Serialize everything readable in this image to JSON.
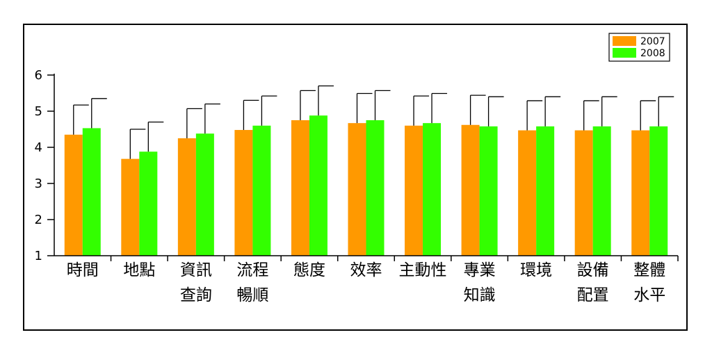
{
  "chart_data": {
    "type": "bar",
    "title": "",
    "xlabel": "",
    "ylabel": "",
    "ylim": [
      1,
      6
    ],
    "yticks": [
      "1",
      "2",
      "3",
      "4",
      "5",
      "6"
    ],
    "grid": false,
    "legend_position": "top-right",
    "categories": [
      [
        "時間"
      ],
      [
        "地點"
      ],
      [
        "資訊",
        "查詢"
      ],
      [
        "流程",
        "暢順"
      ],
      [
        "態度"
      ],
      [
        "效率"
      ],
      [
        "主動性"
      ],
      [
        "專業",
        "知識"
      ],
      [
        "環境"
      ],
      [
        "設備",
        "配置"
      ],
      [
        "整體",
        "水平"
      ]
    ],
    "series": [
      {
        "name": "2007",
        "color": "#ff9900",
        "values": [
          4.35,
          3.68,
          4.25,
          4.48,
          4.75,
          4.67,
          4.6,
          4.62,
          4.47,
          4.47,
          4.47
        ],
        "error": [
          0.82,
          0.82,
          0.82,
          0.82,
          0.82,
          0.82,
          0.82,
          0.82,
          0.82,
          0.82,
          0.82
        ]
      },
      {
        "name": "2008",
        "color": "#33ff00",
        "values": [
          4.53,
          3.88,
          4.38,
          4.6,
          4.88,
          4.75,
          4.67,
          4.58,
          4.58,
          4.58,
          4.58
        ],
        "error": [
          0.82,
          0.82,
          0.82,
          0.82,
          0.82,
          0.82,
          0.82,
          0.82,
          0.82,
          0.82,
          0.82
        ]
      }
    ]
  }
}
